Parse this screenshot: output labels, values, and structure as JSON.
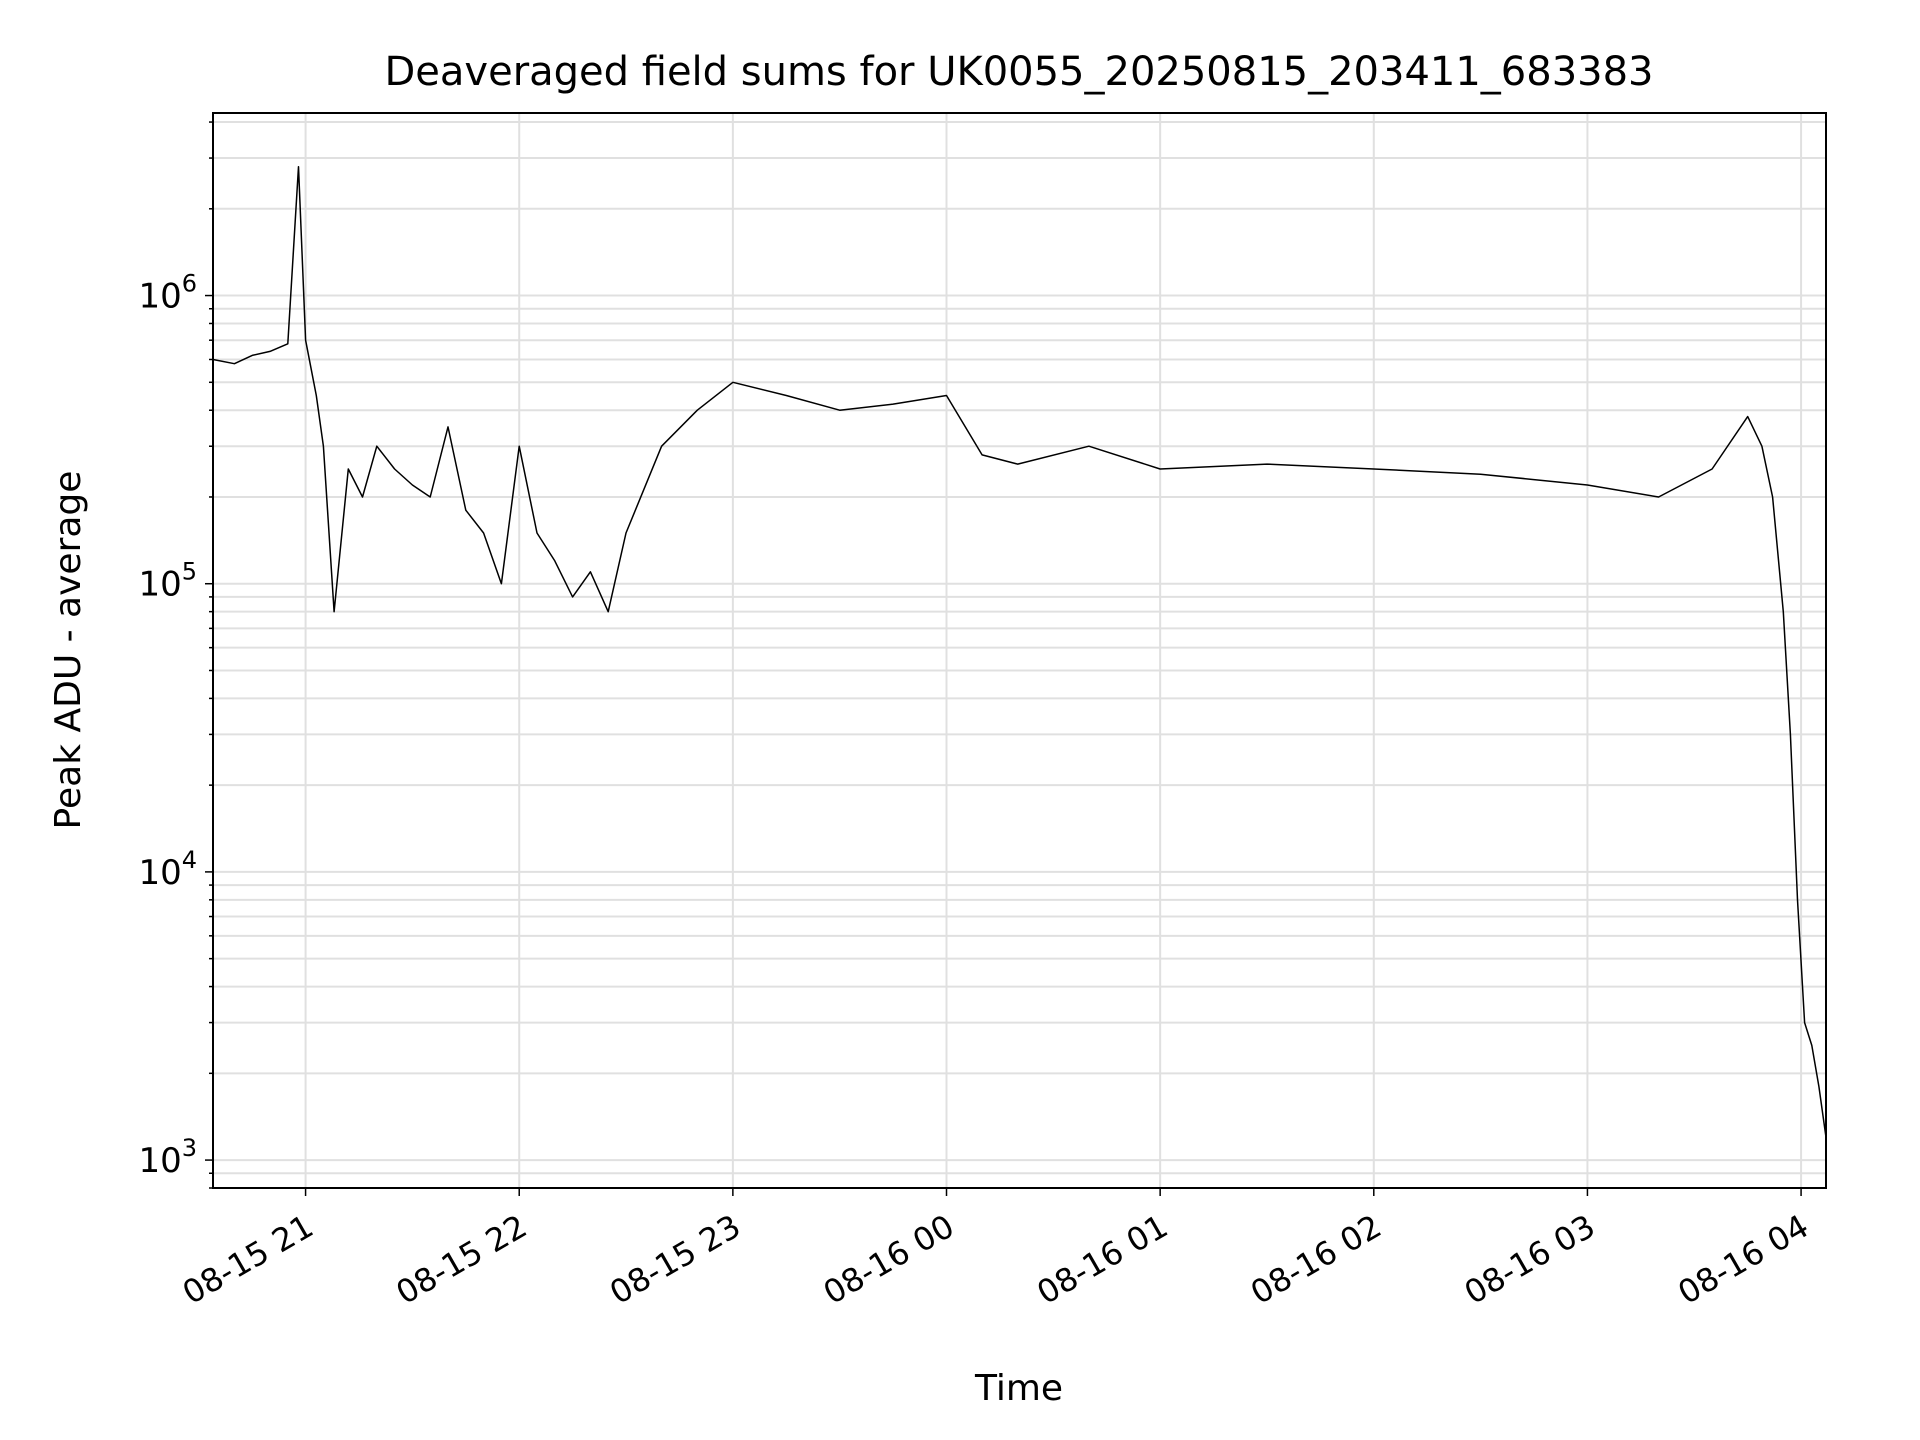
{
  "chart_data": {
    "type": "line",
    "title": "Deaveraged field sums for UK0055_20250815_203411_683383",
    "xlabel": "Time",
    "ylabel": "Peak ADU - average",
    "yscale": "log",
    "ylim": [
      800,
      4300000
    ],
    "xlim": [
      "2025-08-15 20:34",
      "2025-08-16 04:07"
    ],
    "grid": true,
    "line_color": "#000000",
    "grid_color": "#e0e0e0",
    "x_ticks": [
      "2025-08-15 21:00",
      "2025-08-15 22:00",
      "2025-08-15 23:00",
      "2025-08-16 00:00",
      "2025-08-16 01:00",
      "2025-08-16 02:00",
      "2025-08-16 03:00",
      "2025-08-16 04:00"
    ],
    "x_tick_labels": [
      "08-15 21",
      "08-15 22",
      "08-15 23",
      "08-16 00",
      "08-16 01",
      "08-16 02",
      "08-16 03",
      "08-16 04"
    ],
    "y_ticks": [
      {
        "value": 1000,
        "base": "10",
        "exp": "3"
      },
      {
        "value": 10000,
        "base": "10",
        "exp": "4"
      },
      {
        "value": 100000,
        "base": "10",
        "exp": "5"
      },
      {
        "value": 1000000,
        "base": "10",
        "exp": "6"
      }
    ],
    "series": [
      {
        "x": [
          "2025-08-15 20:34",
          "2025-08-15 20:40",
          "2025-08-15 20:45",
          "2025-08-15 20:50",
          "2025-08-15 20:55",
          "2025-08-15 20:58",
          "2025-08-15 21:00",
          "2025-08-15 21:03",
          "2025-08-15 21:05",
          "2025-08-15 21:08",
          "2025-08-15 21:12",
          "2025-08-15 21:16",
          "2025-08-15 21:20",
          "2025-08-15 21:25",
          "2025-08-15 21:30",
          "2025-08-15 21:35",
          "2025-08-15 21:40",
          "2025-08-15 21:45",
          "2025-08-15 21:50",
          "2025-08-15 21:55",
          "2025-08-15 22:00",
          "2025-08-15 22:05",
          "2025-08-15 22:10",
          "2025-08-15 22:15",
          "2025-08-15 22:20",
          "2025-08-15 22:25",
          "2025-08-15 22:30",
          "2025-08-15 22:40",
          "2025-08-15 22:50",
          "2025-08-15 23:00",
          "2025-08-15 23:15",
          "2025-08-15 23:30",
          "2025-08-15 23:45",
          "2025-08-16 00:00",
          "2025-08-16 00:10",
          "2025-08-16 00:20",
          "2025-08-16 00:40",
          "2025-08-16 01:00",
          "2025-08-16 01:30",
          "2025-08-16 02:00",
          "2025-08-16 02:30",
          "2025-08-16 03:00",
          "2025-08-16 03:20",
          "2025-08-16 03:35",
          "2025-08-16 03:45",
          "2025-08-16 03:49",
          "2025-08-16 03:52",
          "2025-08-16 03:55",
          "2025-08-16 03:57",
          "2025-08-16 03:59",
          "2025-08-16 04:01",
          "2025-08-16 04:03",
          "2025-08-16 04:05",
          "2025-08-16 04:07"
        ],
        "y": [
          600000,
          580000,
          620000,
          640000,
          680000,
          2800000,
          700000,
          450000,
          300000,
          80000,
          250000,
          200000,
          300000,
          250000,
          220000,
          200000,
          350000,
          180000,
          150000,
          100000,
          300000,
          150000,
          120000,
          90000,
          110000,
          80000,
          150000,
          300000,
          400000,
          500000,
          450000,
          400000,
          420000,
          450000,
          280000,
          260000,
          300000,
          250000,
          260000,
          250000,
          240000,
          220000,
          200000,
          250000,
          380000,
          300000,
          200000,
          80000,
          30000,
          8000,
          3000,
          2500,
          1800,
          1200
        ]
      }
    ]
  }
}
